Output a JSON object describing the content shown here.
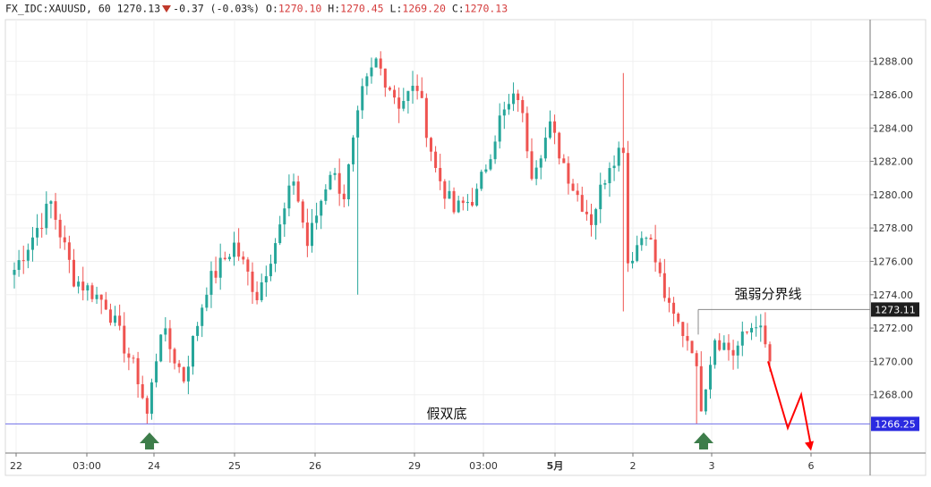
{
  "legend": {
    "symbol": "FX_IDC:XAUUSD",
    "interval": "60",
    "last": "1270.13",
    "change": "-0.37 (-0.03%)",
    "o_label": "O:",
    "o_value": "1270.10",
    "h_label": "H:",
    "h_value": "1270.45",
    "l_label": "L:",
    "l_value": "1269.20",
    "c_label": "C:",
    "c_value": "1270.13"
  },
  "colors": {
    "up": "#26a69a",
    "down": "#ef5350",
    "support": "#6f6fe8",
    "resistance": "#888888",
    "projection": "#ff0000",
    "marker": "#3d7d4a"
  },
  "annotations": {
    "resistance_label": "强弱分界线",
    "support_label": "假双底"
  },
  "chart_data": {
    "type": "candlestick",
    "title": "",
    "xlabel": "",
    "ylabel": "",
    "ylim": [
      1264.5,
      1290.5
    ],
    "y_ticks": [
      "1288.00",
      "1286.00",
      "1284.00",
      "1282.00",
      "1280.00",
      "1278.00",
      "1276.00",
      "1274.00",
      "1272.00",
      "1270.00",
      "1268.00"
    ],
    "x_ticks": [
      "22",
      "03:00",
      "24",
      "25",
      "26",
      "29",
      "03:00",
      "5月",
      "2",
      "3",
      "3",
      "6"
    ],
    "price_badges": {
      "resistance": "1273.11",
      "support": "1266.25"
    },
    "levels": {
      "resistance": 1273.11,
      "support": 1266.25
    },
    "swing_points": [
      {
        "t": 0,
        "p": 1275.5
      },
      {
        "t": 8,
        "p": 1279.5
      },
      {
        "t": 13,
        "p": 1275.0
      },
      {
        "t": 20,
        "p": 1273.5
      },
      {
        "t": 27,
        "p": 1269.0
      },
      {
        "t": 29,
        "p": 1266.8
      },
      {
        "t": 32,
        "p": 1272.0
      },
      {
        "t": 37,
        "p": 1269.0
      },
      {
        "t": 42,
        "p": 1274.5
      },
      {
        "t": 48,
        "p": 1277.0
      },
      {
        "t": 53,
        "p": 1274.0
      },
      {
        "t": 58,
        "p": 1278.0
      },
      {
        "t": 61,
        "p": 1281.0
      },
      {
        "t": 64,
        "p": 1277.0
      },
      {
        "t": 69,
        "p": 1281.5
      },
      {
        "t": 72,
        "p": 1280.0
      },
      {
        "t": 76,
        "p": 1286.0
      },
      {
        "t": 79,
        "p": 1288.0
      },
      {
        "t": 84,
        "p": 1285.5
      },
      {
        "t": 88,
        "p": 1286.5
      },
      {
        "t": 92,
        "p": 1281.5
      },
      {
        "t": 96,
        "p": 1279.0
      },
      {
        "t": 101,
        "p": 1280.0
      },
      {
        "t": 106,
        "p": 1284.5
      },
      {
        "t": 110,
        "p": 1286.0
      },
      {
        "t": 113,
        "p": 1281.5
      },
      {
        "t": 117,
        "p": 1284.0
      },
      {
        "t": 122,
        "p": 1280.5
      },
      {
        "t": 126,
        "p": 1278.5
      },
      {
        "t": 130,
        "p": 1282.0
      },
      {
        "t": 133,
        "p": 1283.0
      },
      {
        "t": 134,
        "p": 1276.0
      },
      {
        "t": 138,
        "p": 1278.0
      },
      {
        "t": 143,
        "p": 1273.0
      },
      {
        "t": 148,
        "p": 1271.0
      },
      {
        "t": 150,
        "p": 1267.5
      },
      {
        "t": 153,
        "p": 1271.5
      },
      {
        "t": 157,
        "p": 1270.5
      },
      {
        "t": 162,
        "p": 1272.5
      },
      {
        "t": 165,
        "p": 1270.0
      }
    ],
    "projection": [
      [
        1270.0,
        0
      ],
      [
        1266.0,
        1
      ],
      [
        1268.0,
        2
      ],
      [
        1265.0,
        3
      ]
    ]
  }
}
